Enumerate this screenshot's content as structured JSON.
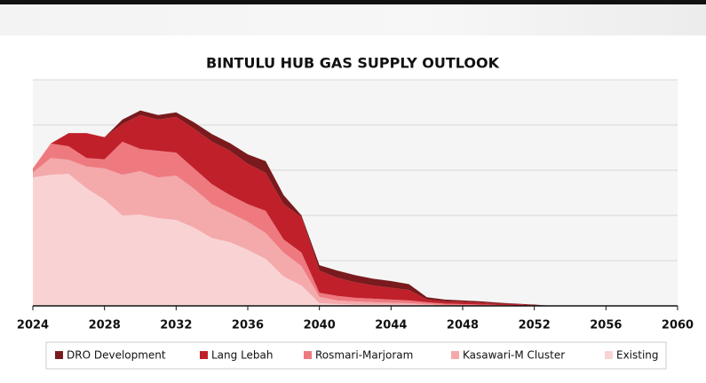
{
  "chart_data": {
    "type": "stacked_area",
    "title": "BINTULU HUB GAS SUPPLY OUTLOOK",
    "x": [
      2024,
      2025,
      2026,
      2027,
      2028,
      2029,
      2030,
      2031,
      2032,
      2033,
      2034,
      2035,
      2036,
      2037,
      2038,
      2039,
      2040,
      2041,
      2042,
      2043,
      2044,
      2045,
      2046,
      2047,
      2048,
      2049,
      2050,
      2051,
      2052,
      2053
    ],
    "series": [
      {
        "name": "DRO Development",
        "color": "#7a1a1e",
        "values": [
          0,
          0,
          0,
          0,
          0,
          0.1,
          0.1,
          0.1,
          0.1,
          0.14,
          0.17,
          0.17,
          0.21,
          0.26,
          0.2,
          0.04,
          0.12,
          0.16,
          0.16,
          0.15,
          0.15,
          0.13,
          0.05,
          0.04,
          0.03,
          0.03,
          0.02,
          0.01,
          0.01,
          0
        ]
      },
      {
        "name": "Lang Lebah",
        "color": "#c0202a",
        "values": [
          0,
          0,
          0.29,
          0.55,
          0.49,
          0.39,
          0.75,
          0.69,
          0.79,
          0.88,
          0.94,
          0.98,
          0.89,
          0.84,
          0.78,
          0.78,
          0.49,
          0.4,
          0.34,
          0.29,
          0.26,
          0.23,
          0.06,
          0.05,
          0.05,
          0.04,
          0.03,
          0.03,
          0.02,
          0
        ]
      },
      {
        "name": "Rosmari-Marjoram",
        "color": "#ee7a80",
        "values": [
          0.09,
          0.32,
          0.3,
          0.19,
          0.2,
          0.73,
          0.49,
          0.59,
          0.51,
          0.45,
          0.44,
          0.39,
          0.39,
          0.49,
          0.29,
          0.3,
          0.09,
          0.1,
          0.08,
          0.08,
          0.07,
          0.06,
          0.04,
          0.03,
          0.03,
          0.03,
          0.02,
          0.01,
          0,
          0
        ]
      },
      {
        "name": "Kasawari-M Cluster",
        "color": "#f4a9ab",
        "values": [
          0.11,
          0.37,
          0.31,
          0.48,
          0.69,
          0.9,
          0.96,
          0.9,
          0.98,
          0.86,
          0.75,
          0.65,
          0.62,
          0.57,
          0.53,
          0.43,
          0.14,
          0.08,
          0.07,
          0.05,
          0.04,
          0.03,
          0.02,
          0.02,
          0.01,
          0,
          0,
          0,
          0,
          0
        ]
      },
      {
        "name": "Existing",
        "color": "#f9d3d4",
        "values": [
          2.84,
          2.9,
          2.92,
          2.6,
          2.35,
          2.0,
          2.02,
          1.94,
          1.9,
          1.73,
          1.5,
          1.41,
          1.24,
          1.04,
          0.65,
          0.45,
          0.06,
          0.04,
          0.03,
          0.03,
          0.03,
          0.03,
          0.02,
          0,
          0,
          0,
          0,
          0,
          0,
          0
        ]
      }
    ],
    "xlim": [
      2024,
      2060
    ],
    "xticks": [
      2024,
      2028,
      2032,
      2036,
      2040,
      2044,
      2048,
      2052,
      2056,
      2060
    ],
    "ylim": [
      0,
      5
    ],
    "yticks": [
      0,
      1,
      2,
      3,
      4,
      5
    ],
    "grid": true,
    "legend": "bottom"
  }
}
